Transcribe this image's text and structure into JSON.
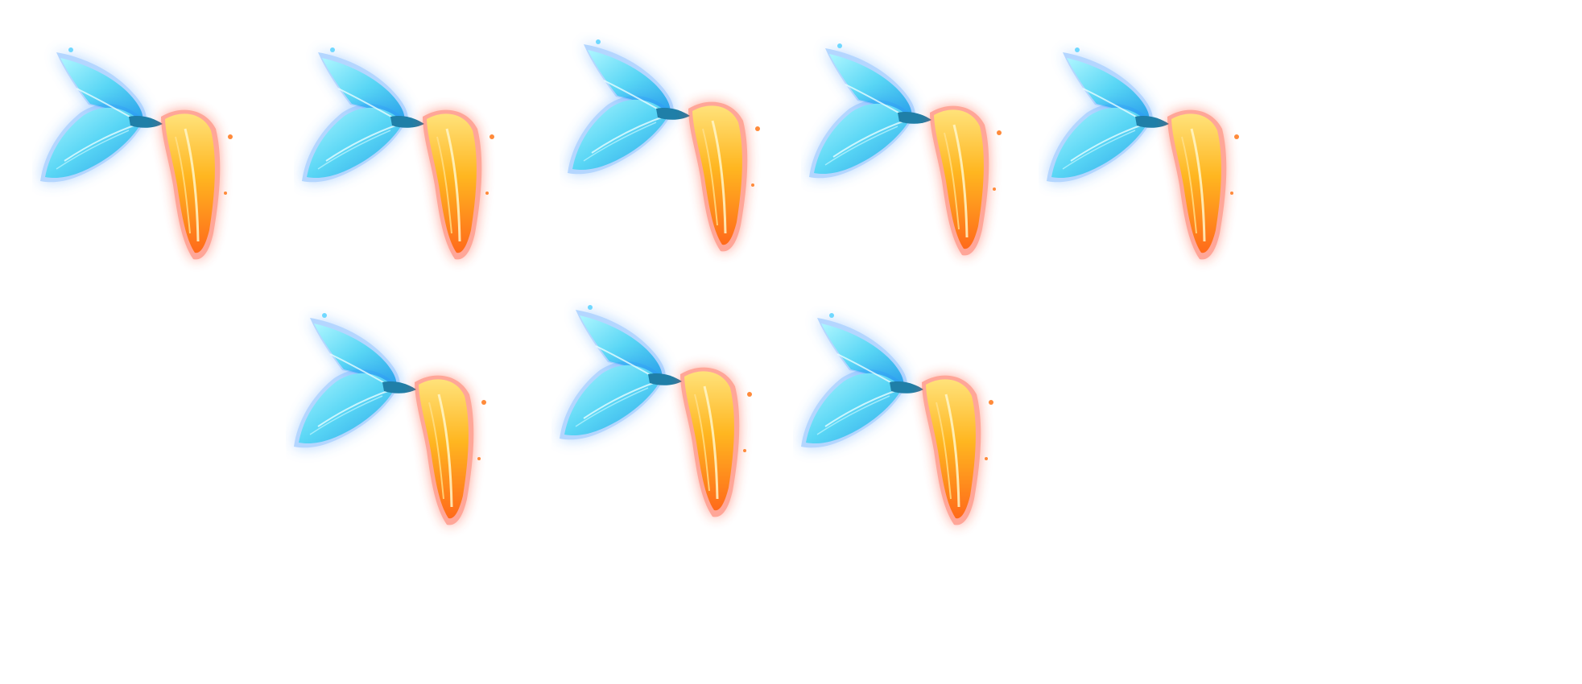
{
  "sprite_sheet": {
    "frame_count": 8,
    "rows": 2,
    "frames": [
      {
        "index": 1,
        "icon": "ice-fire-wings-icon"
      },
      {
        "index": 2,
        "icon": "ice-fire-wings-icon"
      },
      {
        "index": 3,
        "icon": "ice-fire-wings-icon"
      },
      {
        "index": 4,
        "icon": "ice-fire-wings-icon"
      },
      {
        "index": 5,
        "icon": "ice-fire-wings-icon"
      },
      {
        "index": 6,
        "icon": "ice-fire-wings-icon"
      },
      {
        "index": 7,
        "icon": "ice-fire-wings-icon"
      },
      {
        "index": 8,
        "icon": "ice-fire-wings-icon"
      }
    ]
  },
  "colors": {
    "background": "#ffffff",
    "ice_core": "#8ff0ff",
    "ice_mid": "#3fc8f0",
    "ice_glow": "#2a8cff",
    "fire_core": "#fff3a0",
    "fire_mid": "#ffb21e",
    "fire_glow": "#ff3b1e"
  }
}
